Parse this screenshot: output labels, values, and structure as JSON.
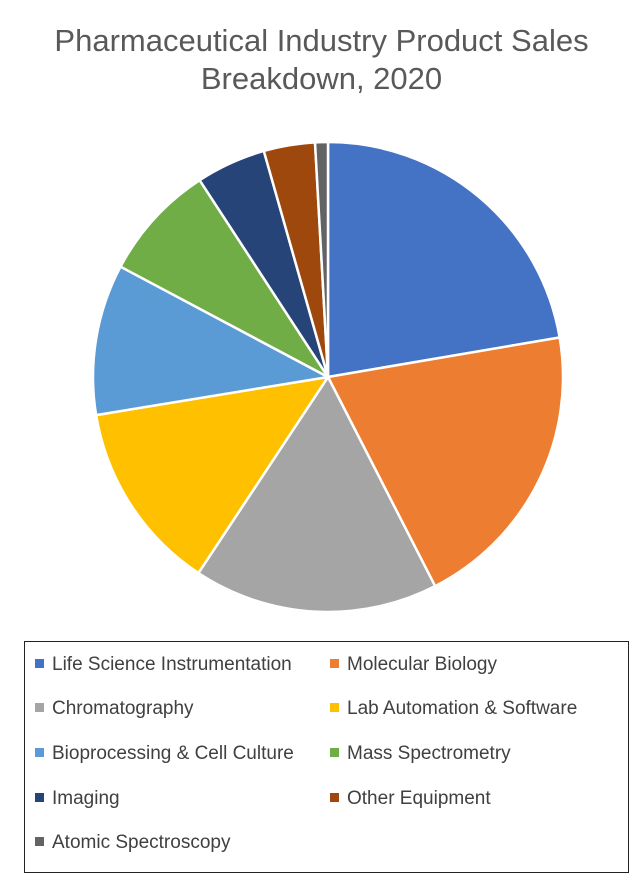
{
  "chart_data": {
    "type": "pie",
    "title": "Pharmaceutical Industry Product Sales Breakdown, 2020",
    "title_lines": [
      "Pharmaceutical Industry Product Sales",
      "Breakdown, 2020"
    ],
    "start_angle_deg": 0,
    "direction": "clockwise",
    "legend_position": "bottom",
    "slices": [
      {
        "label": "Life Science Instrumentation",
        "value": 22.8,
        "color": "#4472C4"
      },
      {
        "label": "Molecular Biology",
        "value": 20.6,
        "color": "#ED7D31"
      },
      {
        "label": "Chromatography",
        "value": 17.2,
        "color": "#A5A5A5"
      },
      {
        "label": "Lab Automation & Software",
        "value": 13.4,
        "color": "#FFC000"
      },
      {
        "label": "Bioprocessing & Cell Culture",
        "value": 10.6,
        "color": "#5B9BD5"
      },
      {
        "label": "Mass Spectrometry",
        "value": 8.2,
        "color": "#70AD47"
      },
      {
        "label": "Imaging",
        "value": 4.9,
        "color": "#264478"
      },
      {
        "label": "Other Equipment",
        "value": 3.6,
        "color": "#9E480E"
      },
      {
        "label": "Atomic Spectroscopy",
        "value": 0.9,
        "color": "#636363"
      }
    ]
  }
}
